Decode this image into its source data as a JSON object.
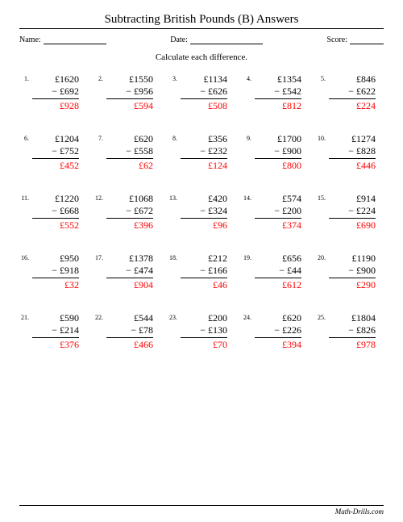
{
  "title": "Subtracting British Pounds (B) Answers",
  "labels": {
    "name": "Name:",
    "date": "Date:",
    "score": "Score:"
  },
  "instruction": "Calculate each difference.",
  "currency": "£",
  "problems": [
    {
      "n": "1.",
      "a": 1620,
      "b": 692,
      "ans": 928
    },
    {
      "n": "2.",
      "a": 1550,
      "b": 956,
      "ans": 594
    },
    {
      "n": "3.",
      "a": 1134,
      "b": 626,
      "ans": 508
    },
    {
      "n": "4.",
      "a": 1354,
      "b": 542,
      "ans": 812
    },
    {
      "n": "5.",
      "a": 846,
      "b": 622,
      "ans": 224
    },
    {
      "n": "6.",
      "a": 1204,
      "b": 752,
      "ans": 452
    },
    {
      "n": "7.",
      "a": 620,
      "b": 558,
      "ans": 62
    },
    {
      "n": "8.",
      "a": 356,
      "b": 232,
      "ans": 124
    },
    {
      "n": "9.",
      "a": 1700,
      "b": 900,
      "ans": 800
    },
    {
      "n": "10.",
      "a": 1274,
      "b": 828,
      "ans": 446
    },
    {
      "n": "11.",
      "a": 1220,
      "b": 668,
      "ans": 552
    },
    {
      "n": "12.",
      "a": 1068,
      "b": 672,
      "ans": 396
    },
    {
      "n": "13.",
      "a": 420,
      "b": 324,
      "ans": 96
    },
    {
      "n": "14.",
      "a": 574,
      "b": 200,
      "ans": 374
    },
    {
      "n": "15.",
      "a": 914,
      "b": 224,
      "ans": 690
    },
    {
      "n": "16.",
      "a": 950,
      "b": 918,
      "ans": 32
    },
    {
      "n": "17.",
      "a": 1378,
      "b": 474,
      "ans": 904
    },
    {
      "n": "18.",
      "a": 212,
      "b": 166,
      "ans": 46
    },
    {
      "n": "19.",
      "a": 656,
      "b": 44,
      "ans": 612
    },
    {
      "n": "20.",
      "a": 1190,
      "b": 900,
      "ans": 290
    },
    {
      "n": "21.",
      "a": 590,
      "b": 214,
      "ans": 376
    },
    {
      "n": "22.",
      "a": 544,
      "b": 78,
      "ans": 466
    },
    {
      "n": "23.",
      "a": 200,
      "b": 130,
      "ans": 70
    },
    {
      "n": "24.",
      "a": 620,
      "b": 226,
      "ans": 394
    },
    {
      "n": "25.",
      "a": 1804,
      "b": 826,
      "ans": 978
    }
  ],
  "footer": "Math-Drills.com",
  "colors": {
    "answer": "#ff0000",
    "text": "#000000",
    "background": "#ffffff"
  }
}
